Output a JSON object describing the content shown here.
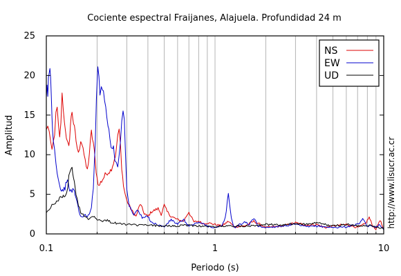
{
  "chart_data": {
    "type": "line",
    "title": "Cociente espectral Fraijanes, Alajuela. Profundidad 24 m",
    "xlabel": "Periodo (s)",
    "ylabel": "Amplitud",
    "x_scale": "log",
    "xlim": [
      0.1,
      10
    ],
    "ylim": [
      0,
      25
    ],
    "x_ticks": [
      "0.1",
      "1",
      "10"
    ],
    "y_ticks": [
      "0",
      "5",
      "10",
      "15",
      "20",
      "25"
    ],
    "grid": "vertical",
    "legend_position": "top-right",
    "credit": "http://www.lisucr.ac.cr",
    "series": [
      {
        "name": "NS",
        "color": "#dd0000",
        "points": [
          [
            0.1,
            13.0
          ],
          [
            0.102,
            13.8
          ],
          [
            0.104,
            12.8
          ],
          [
            0.106,
            11.2
          ],
          [
            0.108,
            10.5
          ],
          [
            0.11,
            11.5
          ],
          [
            0.112,
            12.8
          ],
          [
            0.114,
            15.0
          ],
          [
            0.116,
            15.8
          ],
          [
            0.118,
            13.5
          ],
          [
            0.12,
            12.0
          ],
          [
            0.122,
            14.2
          ],
          [
            0.124,
            17.5
          ],
          [
            0.126,
            16.0
          ],
          [
            0.128,
            14.0
          ],
          [
            0.13,
            13.2
          ],
          [
            0.133,
            11.5
          ],
          [
            0.136,
            10.8
          ],
          [
            0.139,
            13.8
          ],
          [
            0.142,
            15.5
          ],
          [
            0.145,
            14.0
          ],
          [
            0.15,
            11.8
          ],
          [
            0.155,
            10.0
          ],
          [
            0.16,
            12.0
          ],
          [
            0.165,
            11.0
          ],
          [
            0.17,
            9.0
          ],
          [
            0.175,
            8.0
          ],
          [
            0.18,
            10.2
          ],
          [
            0.185,
            12.8
          ],
          [
            0.19,
            11.5
          ],
          [
            0.195,
            9.0
          ],
          [
            0.2,
            7.0
          ],
          [
            0.205,
            6.0
          ],
          [
            0.21,
            6.5
          ],
          [
            0.22,
            7.2
          ],
          [
            0.23,
            7.8
          ],
          [
            0.24,
            8.0
          ],
          [
            0.25,
            9.0
          ],
          [
            0.26,
            10.5
          ],
          [
            0.265,
            12.5
          ],
          [
            0.27,
            13.2
          ],
          [
            0.275,
            11.0
          ],
          [
            0.28,
            8.0
          ],
          [
            0.29,
            5.5
          ],
          [
            0.3,
            4.2
          ],
          [
            0.32,
            3.0
          ],
          [
            0.34,
            2.2
          ],
          [
            0.36,
            3.8
          ],
          [
            0.38,
            2.6
          ],
          [
            0.4,
            2.2
          ],
          [
            0.42,
            2.8
          ],
          [
            0.44,
            3.0
          ],
          [
            0.46,
            3.2
          ],
          [
            0.48,
            2.5
          ],
          [
            0.5,
            3.6
          ],
          [
            0.52,
            2.8
          ],
          [
            0.55,
            2.2
          ],
          [
            0.6,
            1.8
          ],
          [
            0.65,
            1.6
          ],
          [
            0.7,
            2.8
          ],
          [
            0.72,
            2.2
          ],
          [
            0.75,
            1.5
          ],
          [
            0.8,
            1.6
          ],
          [
            0.85,
            1.3
          ],
          [
            0.9,
            1.4
          ],
          [
            1.0,
            1.2
          ],
          [
            1.1,
            1.0
          ],
          [
            1.2,
            1.6
          ],
          [
            1.3,
            0.9
          ],
          [
            1.5,
            1.0
          ],
          [
            1.7,
            1.6
          ],
          [
            2.0,
            0.8
          ],
          [
            2.5,
            1.0
          ],
          [
            3.0,
            1.4
          ],
          [
            3.5,
            1.1
          ],
          [
            4.0,
            1.2
          ],
          [
            4.5,
            0.8
          ],
          [
            5.0,
            1.0
          ],
          [
            6.0,
            1.2
          ],
          [
            7.0,
            0.8
          ],
          [
            7.8,
            1.3
          ],
          [
            8.2,
            2.1
          ],
          [
            8.6,
            1.0
          ],
          [
            9.0,
            0.6
          ],
          [
            9.5,
            1.8
          ],
          [
            10.0,
            0.5
          ]
        ]
      },
      {
        "name": "EW",
        "color": "#0000cc",
        "points": [
          [
            0.1,
            16.8
          ],
          [
            0.101,
            18.5
          ],
          [
            0.102,
            17.2
          ],
          [
            0.103,
            19.5
          ],
          [
            0.104,
            20.5
          ],
          [
            0.105,
            20.8
          ],
          [
            0.106,
            19.8
          ],
          [
            0.107,
            17.2
          ],
          [
            0.108,
            15.0
          ],
          [
            0.109,
            13.0
          ],
          [
            0.11,
            12.2
          ],
          [
            0.112,
            10.5
          ],
          [
            0.114,
            9.0
          ],
          [
            0.116,
            8.0
          ],
          [
            0.118,
            7.0
          ],
          [
            0.12,
            6.0
          ],
          [
            0.123,
            5.6
          ],
          [
            0.126,
            5.5
          ],
          [
            0.129,
            5.8
          ],
          [
            0.132,
            6.8
          ],
          [
            0.135,
            6.2
          ],
          [
            0.138,
            5.6
          ],
          [
            0.142,
            5.2
          ],
          [
            0.145,
            5.8
          ],
          [
            0.148,
            5.0
          ],
          [
            0.152,
            4.0
          ],
          [
            0.156,
            3.0
          ],
          [
            0.16,
            2.2
          ],
          [
            0.165,
            2.0
          ],
          [
            0.17,
            2.6
          ],
          [
            0.175,
            2.1
          ],
          [
            0.18,
            2.5
          ],
          [
            0.185,
            3.2
          ],
          [
            0.19,
            6.0
          ],
          [
            0.195,
            12.0
          ],
          [
            0.198,
            16.5
          ],
          [
            0.2,
            19.5
          ],
          [
            0.202,
            20.9
          ],
          [
            0.205,
            19.8
          ],
          [
            0.208,
            18.0
          ],
          [
            0.212,
            19.0
          ],
          [
            0.218,
            17.8
          ],
          [
            0.225,
            16.0
          ],
          [
            0.232,
            13.8
          ],
          [
            0.238,
            12.2
          ],
          [
            0.242,
            11.0
          ],
          [
            0.245,
            10.8
          ],
          [
            0.25,
            11.2
          ],
          [
            0.255,
            9.5
          ],
          [
            0.26,
            9.2
          ],
          [
            0.265,
            8.8
          ],
          [
            0.27,
            9.8
          ],
          [
            0.275,
            11.5
          ],
          [
            0.28,
            14.2
          ],
          [
            0.285,
            15.8
          ],
          [
            0.29,
            14.0
          ],
          [
            0.295,
            9.8
          ],
          [
            0.3,
            5.5
          ],
          [
            0.31,
            3.5
          ],
          [
            0.32,
            3.0
          ],
          [
            0.33,
            2.5
          ],
          [
            0.35,
            3.0
          ],
          [
            0.37,
            2.0
          ],
          [
            0.4,
            2.2
          ],
          [
            0.42,
            1.5
          ],
          [
            0.45,
            1.2
          ],
          [
            0.5,
            0.9
          ],
          [
            0.55,
            1.8
          ],
          [
            0.6,
            1.2
          ],
          [
            0.65,
            1.8
          ],
          [
            0.7,
            1.0
          ],
          [
            0.75,
            1.2
          ],
          [
            0.8,
            1.5
          ],
          [
            0.9,
            1.0
          ],
          [
            1.0,
            0.8
          ],
          [
            1.1,
            1.0
          ],
          [
            1.15,
            2.0
          ],
          [
            1.2,
            5.0
          ],
          [
            1.25,
            2.0
          ],
          [
            1.3,
            0.8
          ],
          [
            1.5,
            1.5
          ],
          [
            1.6,
            1.2
          ],
          [
            1.7,
            2.0
          ],
          [
            1.8,
            1.0
          ],
          [
            2.0,
            0.8
          ],
          [
            2.5,
            1.0
          ],
          [
            3.0,
            1.2
          ],
          [
            3.5,
            0.9
          ],
          [
            4.0,
            1.0
          ],
          [
            5.0,
            0.8
          ],
          [
            6.0,
            0.9
          ],
          [
            7.0,
            1.2
          ],
          [
            7.5,
            1.8
          ],
          [
            8.0,
            1.0
          ],
          [
            9.0,
            0.9
          ],
          [
            9.5,
            1.2
          ],
          [
            10.0,
            0.5
          ]
        ]
      },
      {
        "name": "UD",
        "color": "#000000",
        "points": [
          [
            0.1,
            2.8
          ],
          [
            0.102,
            3.0
          ],
          [
            0.104,
            3.2
          ],
          [
            0.106,
            3.4
          ],
          [
            0.108,
            3.6
          ],
          [
            0.11,
            3.7
          ],
          [
            0.112,
            3.9
          ],
          [
            0.115,
            4.0
          ],
          [
            0.118,
            4.1
          ],
          [
            0.12,
            4.5
          ],
          [
            0.123,
            4.8
          ],
          [
            0.126,
            4.8
          ],
          [
            0.129,
            4.7
          ],
          [
            0.132,
            5.0
          ],
          [
            0.134,
            6.0
          ],
          [
            0.136,
            7.2
          ],
          [
            0.138,
            7.8
          ],
          [
            0.14,
            8.5
          ],
          [
            0.142,
            8.2
          ],
          [
            0.145,
            7.0
          ],
          [
            0.148,
            5.8
          ],
          [
            0.15,
            5.0
          ],
          [
            0.155,
            3.6
          ],
          [
            0.16,
            2.8
          ],
          [
            0.165,
            2.5
          ],
          [
            0.17,
            2.2
          ],
          [
            0.175,
            2.0
          ],
          [
            0.18,
            1.9
          ],
          [
            0.19,
            2.3
          ],
          [
            0.2,
            1.9
          ],
          [
            0.21,
            1.7
          ],
          [
            0.22,
            1.6
          ],
          [
            0.23,
            1.8
          ],
          [
            0.24,
            1.5
          ],
          [
            0.25,
            1.4
          ],
          [
            0.27,
            1.3
          ],
          [
            0.3,
            1.2
          ],
          [
            0.35,
            1.1
          ],
          [
            0.4,
            1.1
          ],
          [
            0.5,
            1.0
          ],
          [
            0.6,
            1.0
          ],
          [
            0.7,
            1.1
          ],
          [
            0.8,
            1.0
          ],
          [
            1.0,
            0.9
          ],
          [
            1.2,
            1.0
          ],
          [
            1.5,
            1.0
          ],
          [
            2.0,
            1.2
          ],
          [
            2.5,
            1.1
          ],
          [
            3.0,
            1.3
          ],
          [
            3.5,
            1.2
          ],
          [
            4.0,
            1.4
          ],
          [
            5.0,
            1.0
          ],
          [
            6.0,
            1.2
          ],
          [
            7.0,
            1.0
          ],
          [
            8.0,
            1.1
          ],
          [
            9.0,
            0.9
          ],
          [
            10.0,
            0.7
          ]
        ]
      }
    ]
  }
}
